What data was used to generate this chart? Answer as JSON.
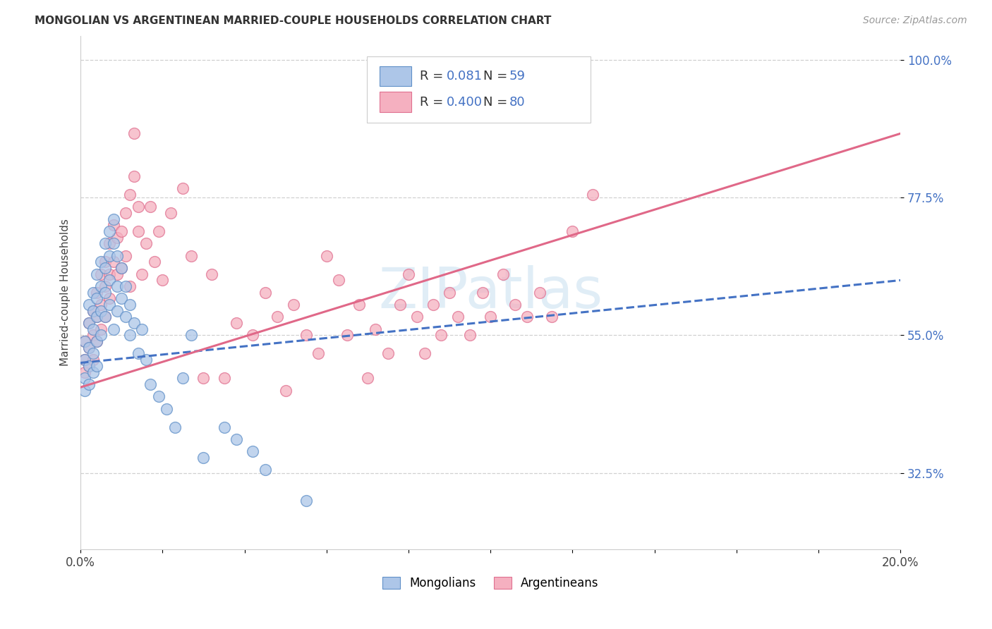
{
  "title": "MONGOLIAN VS ARGENTINEAN MARRIED-COUPLE HOUSEHOLDS CORRELATION CHART",
  "source": "Source: ZipAtlas.com",
  "ylabel": "Married-couple Households",
  "xlim": [
    0.0,
    0.2
  ],
  "ylim": [
    0.2,
    1.04
  ],
  "ytick_positions": [
    0.325,
    0.55,
    0.775,
    1.0
  ],
  "ytick_labels": [
    "32.5%",
    "55.0%",
    "77.5%",
    "100.0%"
  ],
  "mongolian_fill": "#adc6e8",
  "mongolian_edge": "#6090c8",
  "argentinean_fill": "#f5b0c0",
  "argentinean_edge": "#e07090",
  "mongolian_line_color": "#4472c4",
  "argentinean_line_color": "#e06888",
  "legend_R_mongolian": "0.081",
  "legend_N_mongolian": "59",
  "legend_R_argentinean": "0.400",
  "legend_N_argentinean": "80",
  "watermark": "ZIPatlas",
  "background_color": "#ffffff",
  "grid_color": "#d0d0d0",
  "trend_blue_x0": 0.0,
  "trend_blue_y0": 0.505,
  "trend_blue_x1": 0.2,
  "trend_blue_y1": 0.64,
  "trend_pink_x0": 0.0,
  "trend_pink_y0": 0.465,
  "trend_pink_x1": 0.2,
  "trend_pink_y1": 0.88,
  "mong_x": [
    0.001,
    0.001,
    0.001,
    0.001,
    0.002,
    0.002,
    0.002,
    0.002,
    0.002,
    0.003,
    0.003,
    0.003,
    0.003,
    0.003,
    0.004,
    0.004,
    0.004,
    0.004,
    0.004,
    0.005,
    0.005,
    0.005,
    0.005,
    0.006,
    0.006,
    0.006,
    0.006,
    0.007,
    0.007,
    0.007,
    0.007,
    0.008,
    0.008,
    0.008,
    0.009,
    0.009,
    0.009,
    0.01,
    0.01,
    0.011,
    0.011,
    0.012,
    0.012,
    0.013,
    0.014,
    0.015,
    0.016,
    0.017,
    0.019,
    0.021,
    0.023,
    0.025,
    0.027,
    0.03,
    0.035,
    0.038,
    0.042,
    0.045,
    0.055
  ],
  "mong_y": [
    0.54,
    0.51,
    0.48,
    0.46,
    0.6,
    0.57,
    0.53,
    0.5,
    0.47,
    0.62,
    0.59,
    0.56,
    0.52,
    0.49,
    0.65,
    0.61,
    0.58,
    0.54,
    0.5,
    0.67,
    0.63,
    0.59,
    0.55,
    0.7,
    0.66,
    0.62,
    0.58,
    0.72,
    0.68,
    0.64,
    0.6,
    0.74,
    0.7,
    0.56,
    0.68,
    0.63,
    0.59,
    0.66,
    0.61,
    0.63,
    0.58,
    0.6,
    0.55,
    0.57,
    0.52,
    0.56,
    0.51,
    0.47,
    0.45,
    0.43,
    0.4,
    0.48,
    0.55,
    0.35,
    0.4,
    0.38,
    0.36,
    0.33,
    0.28
  ],
  "arg_x": [
    0.001,
    0.001,
    0.001,
    0.002,
    0.002,
    0.002,
    0.003,
    0.003,
    0.003,
    0.004,
    0.004,
    0.004,
    0.005,
    0.005,
    0.005,
    0.006,
    0.006,
    0.006,
    0.007,
    0.007,
    0.007,
    0.008,
    0.008,
    0.009,
    0.009,
    0.01,
    0.01,
    0.011,
    0.011,
    0.012,
    0.012,
    0.013,
    0.013,
    0.014,
    0.014,
    0.015,
    0.016,
    0.017,
    0.018,
    0.019,
    0.02,
    0.022,
    0.025,
    0.027,
    0.03,
    0.032,
    0.035,
    0.038,
    0.042,
    0.045,
    0.048,
    0.05,
    0.052,
    0.055,
    0.058,
    0.06,
    0.063,
    0.065,
    0.068,
    0.07,
    0.072,
    0.075,
    0.078,
    0.08,
    0.082,
    0.084,
    0.086,
    0.088,
    0.09,
    0.092,
    0.095,
    0.098,
    0.1,
    0.103,
    0.106,
    0.109,
    0.112,
    0.115,
    0.12,
    0.125
  ],
  "arg_y": [
    0.54,
    0.51,
    0.49,
    0.57,
    0.53,
    0.5,
    0.59,
    0.55,
    0.51,
    0.62,
    0.58,
    0.54,
    0.65,
    0.6,
    0.56,
    0.67,
    0.63,
    0.58,
    0.7,
    0.65,
    0.61,
    0.73,
    0.67,
    0.71,
    0.65,
    0.72,
    0.66,
    0.75,
    0.68,
    0.78,
    0.63,
    0.81,
    0.88,
    0.76,
    0.72,
    0.65,
    0.7,
    0.76,
    0.67,
    0.72,
    0.64,
    0.75,
    0.79,
    0.68,
    0.48,
    0.65,
    0.48,
    0.57,
    0.55,
    0.62,
    0.58,
    0.46,
    0.6,
    0.55,
    0.52,
    0.68,
    0.64,
    0.55,
    0.6,
    0.48,
    0.56,
    0.52,
    0.6,
    0.65,
    0.58,
    0.52,
    0.6,
    0.55,
    0.62,
    0.58,
    0.55,
    0.62,
    0.58,
    0.65,
    0.6,
    0.58,
    0.62,
    0.58,
    0.72,
    0.78
  ]
}
